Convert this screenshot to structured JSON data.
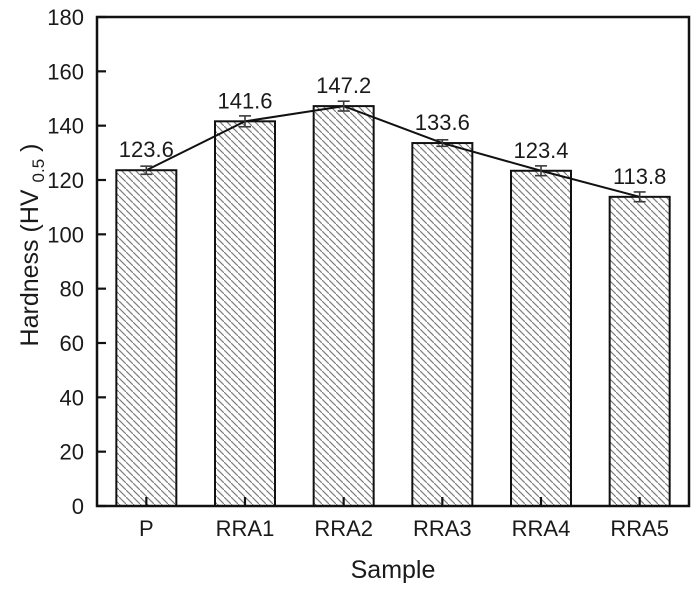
{
  "chart_data": {
    "type": "bar",
    "title": "",
    "categories": [
      "P",
      "RRA1",
      "RRA2",
      "RRA3",
      "RRA4",
      "RRA5"
    ],
    "values": [
      123.6,
      141.6,
      147.2,
      133.6,
      123.4,
      113.8
    ],
    "errors": [
      1.5,
      2.0,
      1.8,
      1.2,
      1.8,
      1.8
    ],
    "value_labels": [
      "123.6",
      "141.6",
      "147.2",
      "133.6",
      "123.4",
      "113.8"
    ],
    "overlay_line": true,
    "xlabel": "Sample",
    "ylabel": {
      "pre": "Hardness (HV",
      "sub": "0.5",
      "post": ")"
    },
    "ylim": [
      0,
      180
    ],
    "ytick_step": 20,
    "grid": false,
    "legend": "none",
    "bar_style": "white with gray diagonal hatch (backslash direction), black outline",
    "colors": {
      "axis": "#111111",
      "text": "#1a1a1a",
      "hatch": "#7d7d7d",
      "line": "#111111",
      "error": "#3a3a3a",
      "bar_background": "#ffffff"
    }
  }
}
